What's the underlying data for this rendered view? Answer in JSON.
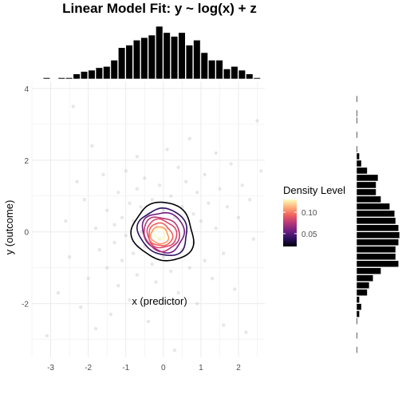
{
  "chart_data": {
    "type": "scatter",
    "title": "Linear Model Fit: y ~ log(x) + z",
    "xlabel": "x (predictor)",
    "ylabel": "y (outcome)",
    "xlim": [
      -3.5,
      2.7
    ],
    "ylim": [
      -3.5,
      4.2
    ],
    "x_ticks": [
      -3,
      -2,
      -1,
      0,
      1,
      2
    ],
    "y_ticks": [
      -2,
      0,
      2,
      4
    ],
    "grid": true,
    "legend": {
      "title": "Density Level",
      "placement": "right",
      "ticks": [
        0.05,
        0.1
      ],
      "range": [
        0.02,
        0.13
      ],
      "colors": [
        "#000004",
        "#2c115f",
        "#721f81",
        "#b73779",
        "#f1605d",
        "#feb078",
        "#fcfdbf"
      ]
    },
    "density_contours": [
      {
        "level": 0.015,
        "color": "#000004",
        "cx": 0.0,
        "cy": 0.0,
        "sx": 1.25,
        "sy": 1.55
      },
      {
        "level": 0.03,
        "color": "#2c115f",
        "cx": 0.0,
        "cy": 0.0,
        "sx": 1.0,
        "sy": 1.25
      },
      {
        "level": 0.045,
        "color": "#721f81",
        "cx": 0.0,
        "cy": 0.0,
        "sx": 0.85,
        "sy": 1.05
      },
      {
        "level": 0.06,
        "color": "#b73779",
        "cx": -0.05,
        "cy": -0.05,
        "sx": 0.72,
        "sy": 0.9
      },
      {
        "level": 0.075,
        "color": "#de4968",
        "cx": -0.05,
        "cy": -0.05,
        "sx": 0.6,
        "sy": 0.75
      },
      {
        "level": 0.09,
        "color": "#f1605d",
        "cx": -0.08,
        "cy": -0.08,
        "sx": 0.48,
        "sy": 0.6
      },
      {
        "level": 0.105,
        "color": "#fd9668",
        "cx": -0.1,
        "cy": -0.1,
        "sx": 0.36,
        "sy": 0.45
      },
      {
        "level": 0.12,
        "color": "#fcfdbf",
        "cx": -0.1,
        "cy": -0.05,
        "sx": 0.22,
        "sy": 0.3
      }
    ],
    "x_marginal_hist": {
      "bin_width": 0.2,
      "bins": [
        {
          "x": -3.1,
          "count": 1
        },
        {
          "x": -2.9,
          "count": 0
        },
        {
          "x": -2.7,
          "count": 1
        },
        {
          "x": -2.5,
          "count": 1
        },
        {
          "x": -2.3,
          "count": 4
        },
        {
          "x": -2.1,
          "count": 6
        },
        {
          "x": -1.9,
          "count": 7
        },
        {
          "x": -1.7,
          "count": 9
        },
        {
          "x": -1.5,
          "count": 10
        },
        {
          "x": -1.3,
          "count": 15
        },
        {
          "x": -1.1,
          "count": 25
        },
        {
          "x": -0.9,
          "count": 27
        },
        {
          "x": -0.7,
          "count": 31
        },
        {
          "x": -0.5,
          "count": 33
        },
        {
          "x": -0.3,
          "count": 35
        },
        {
          "x": -0.1,
          "count": 42
        },
        {
          "x": 0.1,
          "count": 37
        },
        {
          "x": 0.3,
          "count": 34
        },
        {
          "x": 0.5,
          "count": 37
        },
        {
          "x": 0.7,
          "count": 27
        },
        {
          "x": 0.9,
          "count": 31
        },
        {
          "x": 1.1,
          "count": 21
        },
        {
          "x": 1.3,
          "count": 15
        },
        {
          "x": 1.5,
          "count": 15
        },
        {
          "x": 1.7,
          "count": 8
        },
        {
          "x": 1.9,
          "count": 10
        },
        {
          "x": 2.1,
          "count": 7
        },
        {
          "x": 2.3,
          "count": 4
        },
        {
          "x": 2.5,
          "count": 1
        }
      ]
    },
    "y_marginal_hist": {
      "bin_width": 0.2,
      "bins": [
        {
          "y": -3.3,
          "count": 1
        },
        {
          "y": -2.9,
          "count": 1
        },
        {
          "y": -2.5,
          "count": 1
        },
        {
          "y": -2.3,
          "count": 3
        },
        {
          "y": -2.1,
          "count": 5
        },
        {
          "y": -1.9,
          "count": 3
        },
        {
          "y": -1.7,
          "count": 11
        },
        {
          "y": -1.5,
          "count": 13
        },
        {
          "y": -1.3,
          "count": 17
        },
        {
          "y": -1.1,
          "count": 25
        },
        {
          "y": -0.9,
          "count": 43
        },
        {
          "y": -0.7,
          "count": 40
        },
        {
          "y": -0.5,
          "count": 40
        },
        {
          "y": -0.3,
          "count": 43
        },
        {
          "y": -0.1,
          "count": 44
        },
        {
          "y": 0.1,
          "count": 43
        },
        {
          "y": 0.3,
          "count": 40
        },
        {
          "y": 0.5,
          "count": 39
        },
        {
          "y": 0.7,
          "count": 34
        },
        {
          "y": 0.9,
          "count": 25
        },
        {
          "y": 1.1,
          "count": 20
        },
        {
          "y": 1.3,
          "count": 20
        },
        {
          "y": 1.5,
          "count": 22
        },
        {
          "y": 1.7,
          "count": 11
        },
        {
          "y": 1.9,
          "count": 5
        },
        {
          "y": 2.1,
          "count": 3
        },
        {
          "y": 2.3,
          "count": 1
        },
        {
          "y": 2.7,
          "count": 1
        },
        {
          "y": 3.1,
          "count": 1
        },
        {
          "y": 3.3,
          "count": 1
        },
        {
          "y": 3.7,
          "count": 1
        }
      ]
    },
    "points": [
      [
        -3.1,
        -2.9
      ],
      [
        -2.8,
        -1.7
      ],
      [
        -2.6,
        0.3
      ],
      [
        -2.5,
        -0.7
      ],
      [
        -2.3,
        1.4
      ],
      [
        -2.2,
        -2.1
      ],
      [
        -2.1,
        0.9
      ],
      [
        -2.0,
        -1.3
      ],
      [
        -1.9,
        2.4
      ],
      [
        -1.8,
        0.1
      ],
      [
        -1.7,
        -0.5
      ],
      [
        -1.6,
        1.6
      ],
      [
        -1.5,
        -1.0
      ],
      [
        -1.5,
        0.6
      ],
      [
        -1.4,
        -2.3
      ],
      [
        -1.3,
        0.2
      ],
      [
        -1.3,
        -0.3
      ],
      [
        -1.2,
        1.1
      ],
      [
        -1.2,
        -1.5
      ],
      [
        -1.1,
        0.4
      ],
      [
        -1.1,
        -0.8
      ],
      [
        -1.0,
        1.7
      ],
      [
        -1.0,
        -0.1
      ],
      [
        -0.9,
        0.8
      ],
      [
        -0.9,
        -1.9
      ],
      [
        -0.8,
        0.3
      ],
      [
        -0.8,
        -0.6
      ],
      [
        -0.7,
        2.1
      ],
      [
        -0.7,
        1.2
      ],
      [
        -0.7,
        -1.2
      ],
      [
        -0.6,
        0.0
      ],
      [
        -0.6,
        0.7
      ],
      [
        -0.5,
        -0.4
      ],
      [
        -0.5,
        1.5
      ],
      [
        -0.4,
        -2.5
      ],
      [
        -0.4,
        0.5
      ],
      [
        -0.3,
        -0.9
      ],
      [
        -0.3,
        0.9
      ],
      [
        -0.2,
        0.2
      ],
      [
        -0.2,
        -1.4
      ],
      [
        -0.1,
        1.3
      ],
      [
        -0.1,
        -0.2
      ],
      [
        0.0,
        0.6
      ],
      [
        0.0,
        -0.7
      ],
      [
        0.1,
        2.3
      ],
      [
        0.1,
        0.1
      ],
      [
        0.2,
        -1.1
      ],
      [
        0.2,
        1.0
      ],
      [
        0.3,
        0.4
      ],
      [
        0.3,
        -0.3
      ],
      [
        0.4,
        1.8
      ],
      [
        0.4,
        -1.7
      ],
      [
        0.5,
        0.7
      ],
      [
        0.5,
        -0.5
      ],
      [
        0.6,
        1.4
      ],
      [
        0.6,
        0.0
      ],
      [
        0.7,
        -1.0
      ],
      [
        0.7,
        2.6
      ],
      [
        0.8,
        0.5
      ],
      [
        0.8,
        -0.3
      ],
      [
        0.9,
        1.1
      ],
      [
        0.9,
        -2.0
      ],
      [
        1.0,
        0.3
      ],
      [
        1.1,
        1.6
      ],
      [
        1.1,
        -0.8
      ],
      [
        1.2,
        0.8
      ],
      [
        1.3,
        -1.3
      ],
      [
        1.4,
        2.2
      ],
      [
        1.4,
        0.1
      ],
      [
        1.5,
        1.2
      ],
      [
        1.6,
        -0.6
      ],
      [
        1.7,
        0.7
      ],
      [
        1.8,
        1.9
      ],
      [
        1.9,
        -1.6
      ],
      [
        2.0,
        0.4
      ],
      [
        2.1,
        1.3
      ],
      [
        2.2,
        -2.8
      ],
      [
        2.3,
        0.9
      ],
      [
        2.4,
        -0.2
      ],
      [
        2.5,
        3.1
      ],
      [
        -2.4,
        3.5
      ],
      [
        0.3,
        -3.3
      ],
      [
        1.6,
        -2.6
      ],
      [
        -1.8,
        -2.7
      ],
      [
        2.6,
        1.7
      ]
    ]
  }
}
